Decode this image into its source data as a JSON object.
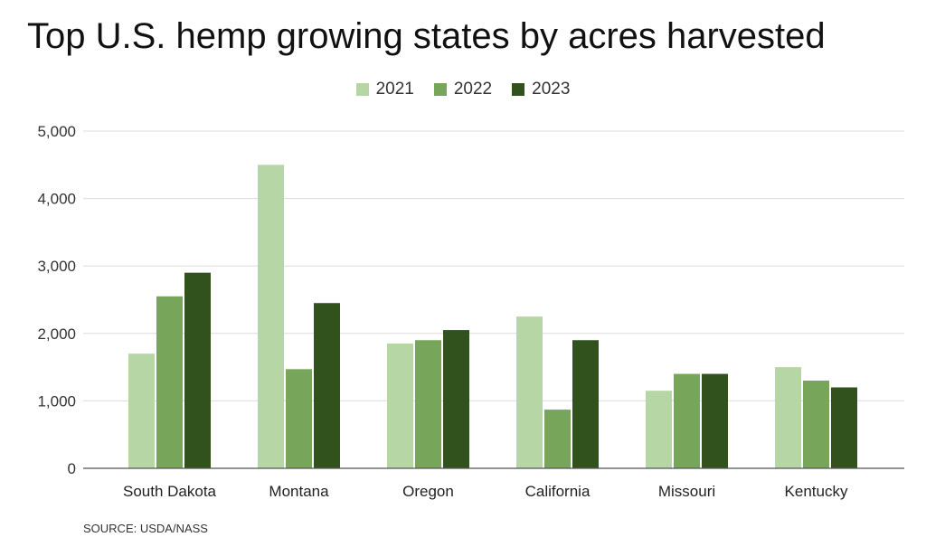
{
  "chart_data": {
    "type": "bar",
    "title": "Top U.S. hemp growing states by acres harvested",
    "xlabel": "",
    "ylabel": "",
    "ylim": [
      0,
      5000
    ],
    "yticks": [
      "0",
      "1,000",
      "2,000",
      "3,000",
      "4,000",
      "5,000"
    ],
    "ytick_values": [
      0,
      1000,
      2000,
      3000,
      4000,
      5000
    ],
    "grid": true,
    "legend_position": "top-center",
    "categories": [
      "South Dakota",
      "Montana",
      "Oregon",
      "California",
      "Missouri",
      "Kentucky"
    ],
    "series": [
      {
        "name": "2021",
        "color": "#b7d6a6",
        "values": [
          1700,
          4500,
          1850,
          2250,
          1150,
          1500
        ]
      },
      {
        "name": "2022",
        "color": "#77a65a",
        "values": [
          2550,
          1470,
          1900,
          870,
          1400,
          1300
        ]
      },
      {
        "name": "2023",
        "color": "#31521d",
        "values": [
          2900,
          2450,
          2050,
          1900,
          1400,
          1200
        ]
      }
    ],
    "source": "SOURCE: USDA/NASS"
  }
}
